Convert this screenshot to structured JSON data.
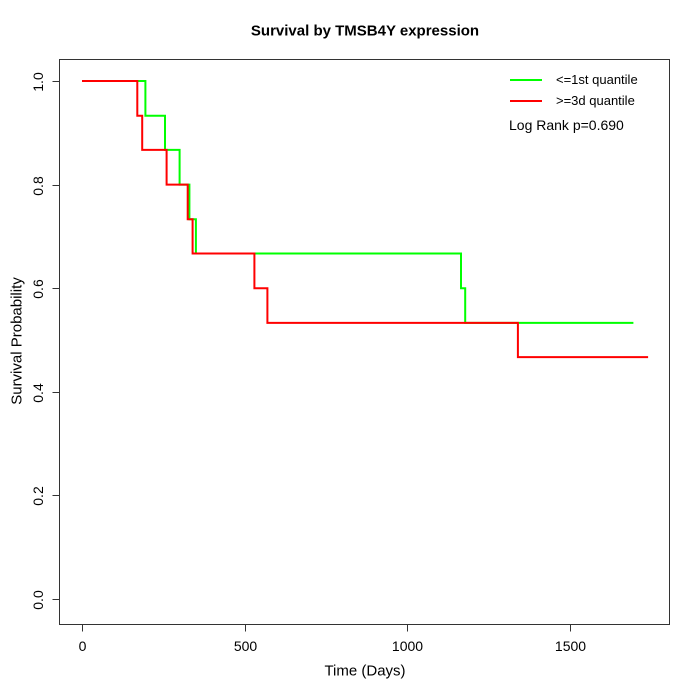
{
  "title": "Survival by TMSB4Y expression",
  "x_axis": {
    "label": "Time (Days)",
    "ticks": [
      "0",
      "500",
      "1000",
      "1500"
    ],
    "tick_values": [
      0,
      500,
      1000,
      1500
    ]
  },
  "y_axis": {
    "label": "Survival Probability",
    "ticks": [
      "1.0",
      "0.8",
      "0.6",
      "0.4",
      "0.2",
      "0.0"
    ],
    "tick_values": [
      1.0,
      0.8,
      0.6,
      0.4,
      0.2,
      0.0
    ]
  },
  "legend": {
    "items": [
      {
        "label": "<=1st quantile",
        "color": "#00ff00"
      },
      {
        "label": ">=3d quantile",
        "color": "#ff0000"
      }
    ]
  },
  "annotation": "Log Rank p=0.690",
  "chart_data": {
    "type": "line",
    "subtype": "kaplan_meier_step",
    "title": "Survival by TMSB4Y expression",
    "xlabel": "Time (Days)",
    "ylabel": "Survival Probability",
    "xlim": [
      0,
      1800
    ],
    "ylim": [
      0.0,
      1.0
    ],
    "x_ticks": [
      0,
      500,
      1000,
      1500
    ],
    "y_ticks": [
      1.0,
      0.8,
      0.6,
      0.4,
      0.2,
      0.0
    ],
    "grid": false,
    "legend_position": "top-right-inside",
    "log_rank_p": "0.690",
    "series": [
      {
        "name": "<=1st quantile",
        "color": "#00ff00",
        "steps": [
          [
            0,
            1.0
          ],
          [
            195,
            0.933
          ],
          [
            255,
            0.867
          ],
          [
            300,
            0.8
          ],
          [
            330,
            0.733
          ],
          [
            350,
            0.667
          ],
          [
            1165,
            0.6
          ],
          [
            1178,
            0.533
          ]
        ],
        "end_time": 1695
      },
      {
        "name": ">=3d quantile",
        "color": "#ff0000",
        "steps": [
          [
            0,
            1.0
          ],
          [
            170,
            0.933
          ],
          [
            185,
            0.867
          ],
          [
            260,
            0.8
          ],
          [
            325,
            0.733
          ],
          [
            340,
            0.667
          ],
          [
            530,
            0.6
          ],
          [
            570,
            0.533
          ],
          [
            1340,
            0.467
          ]
        ],
        "end_time": 1740
      }
    ]
  }
}
